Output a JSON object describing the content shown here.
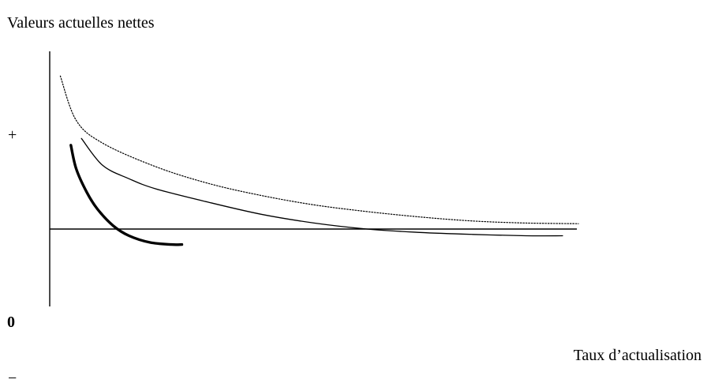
{
  "chart_data": {
    "type": "line",
    "title": "Valeurs actuelles nettes",
    "xlabel": "Taux d’actualisation",
    "ylabel": "",
    "y_tick_labels": [
      "+",
      "0",
      "−"
    ],
    "grid": false,
    "legend": "none",
    "series": [
      {
        "style": "dotted",
        "color": "#000000",
        "x": [
          0.02,
          0.05,
          0.1,
          0.2,
          0.3,
          0.4,
          0.5,
          0.6,
          0.7,
          0.8,
          0.9,
          1.0
        ],
        "y": [
          2.28,
          1.62,
          1.28,
          0.93,
          0.68,
          0.5,
          0.36,
          0.26,
          0.18,
          0.12,
          0.09,
          0.08
        ]
      },
      {
        "style": "solid-thin",
        "color": "#000000",
        "x": [
          0.06,
          0.1,
          0.15,
          0.2,
          0.3,
          0.4,
          0.5,
          0.6,
          0.7,
          0.8,
          0.9,
          0.97
        ],
        "y": [
          1.35,
          0.95,
          0.75,
          0.6,
          0.4,
          0.22,
          0.09,
          0.0,
          -0.05,
          -0.08,
          -0.1,
          -0.1
        ]
      },
      {
        "style": "solid-thick",
        "color": "#000000",
        "x": [
          0.04,
          0.05,
          0.07,
          0.09,
          0.12,
          0.15,
          0.19,
          0.23,
          0.25
        ],
        "y": [
          1.25,
          0.9,
          0.55,
          0.3,
          0.05,
          -0.1,
          -0.2,
          -0.23,
          -0.23
        ]
      }
    ]
  }
}
